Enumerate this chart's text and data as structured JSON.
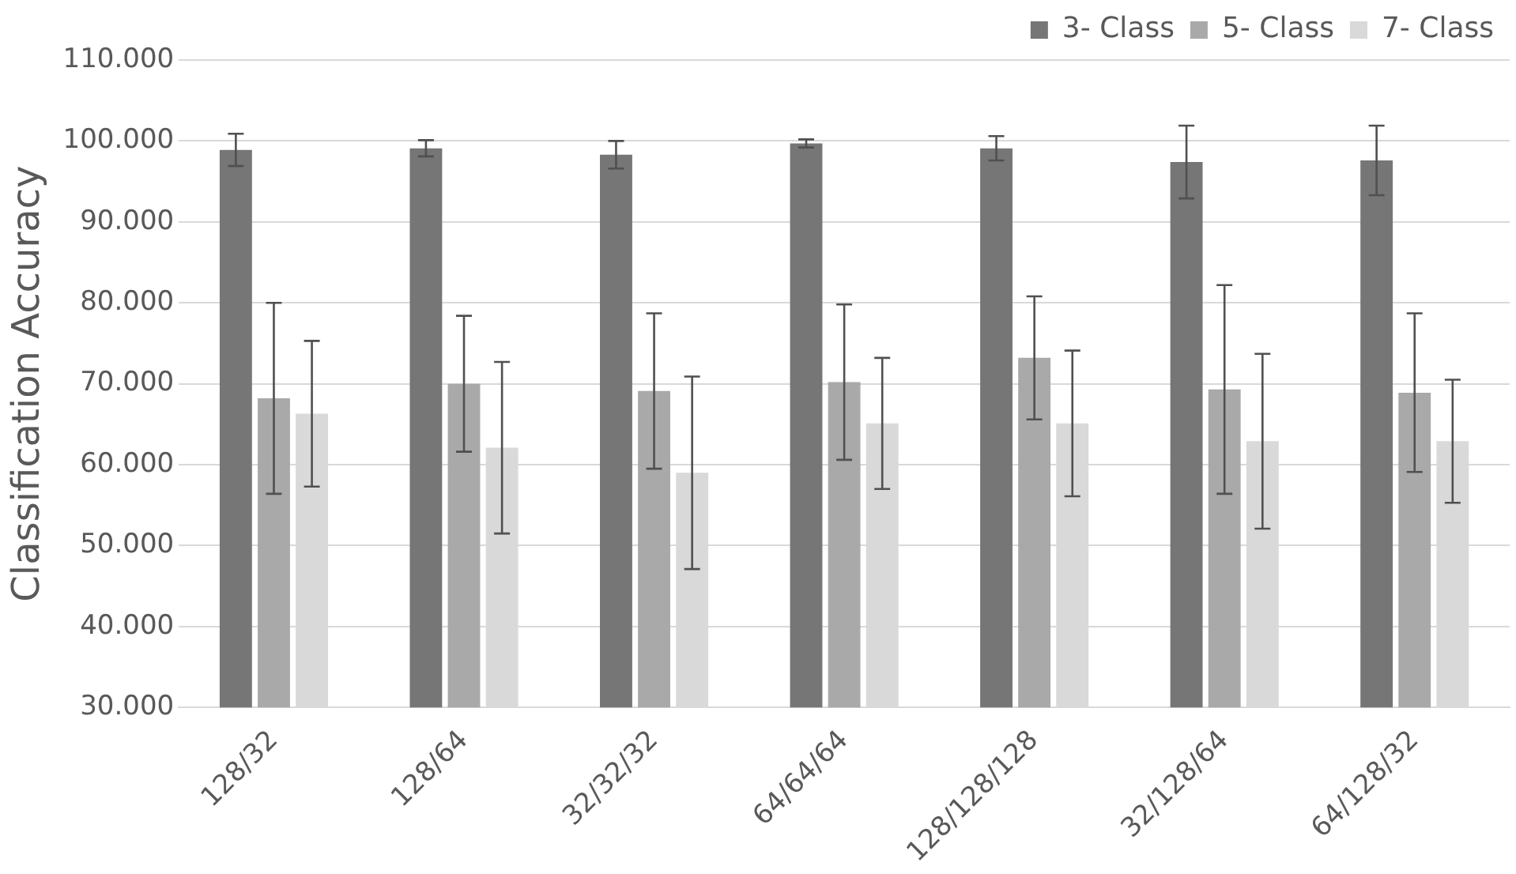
{
  "chart_data": {
    "type": "bar",
    "ylabel": "Classification Accuracy",
    "categories": [
      "128/32",
      "128/64",
      "32/32/32",
      "64/64/64",
      "128/128/128",
      "32/128/64",
      "64/128/32"
    ],
    "series": [
      {
        "name": "3- Class",
        "color": "#767676",
        "values": [
          98.9,
          99.1,
          98.3,
          99.7,
          99.1,
          97.4,
          97.6
        ],
        "errors": [
          2,
          1,
          1.7,
          0.5,
          1.5,
          4.5,
          4.3
        ]
      },
      {
        "name": "5- Class",
        "color": "#a9a9a9",
        "values": [
          68.2,
          70.0,
          69.1,
          70.2,
          73.2,
          69.3,
          68.9
        ],
        "errors": [
          11.8,
          8.4,
          9.6,
          9.6,
          7.6,
          12.9,
          9.8
        ]
      },
      {
        "name": "7- Class",
        "color": "#d9d9d9",
        "values": [
          66.3,
          62.1,
          59.0,
          65.1,
          65.1,
          62.9,
          62.9
        ],
        "errors": [
          9,
          10.6,
          11.9,
          8.1,
          9,
          10.8,
          7.6
        ]
      }
    ],
    "ylim": [
      30,
      110
    ],
    "yticks": [
      {
        "value": 30,
        "label": "30.000"
      },
      {
        "value": 40,
        "label": "40.000"
      },
      {
        "value": 50,
        "label": "50.000"
      },
      {
        "value": 60,
        "label": "60.000"
      },
      {
        "value": 70,
        "label": "70.000"
      },
      {
        "value": 80,
        "label": "80.000"
      },
      {
        "value": 90,
        "label": "90.000"
      },
      {
        "value": 100,
        "label": "100.000"
      },
      {
        "value": 110,
        "label": "110.000"
      }
    ],
    "grid": "y",
    "legend": "top right"
  }
}
